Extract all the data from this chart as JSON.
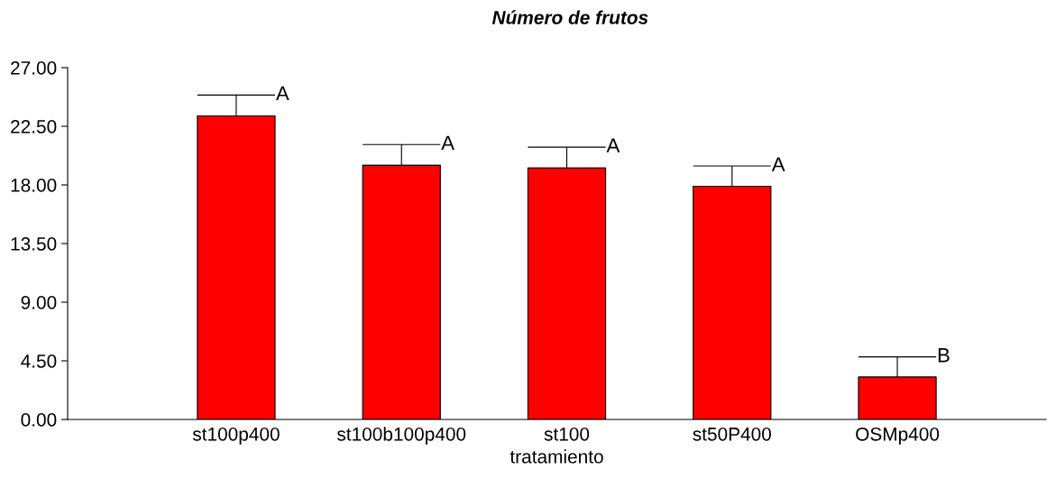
{
  "chart_data": {
    "type": "bar",
    "title": "Número de frutos",
    "xlabel": "tratamiento",
    "categories": [
      "st100p400",
      "st100b100p400",
      "st100",
      "st50P400",
      "OSMp400"
    ],
    "values": [
      23.3,
      19.5,
      19.3,
      17.9,
      3.25
    ],
    "errors": [
      [
        23.3,
        24.9
      ],
      [
        19.5,
        21.1
      ],
      [
        19.3,
        20.9
      ],
      [
        17.9,
        19.45
      ],
      [
        3.25,
        4.8
      ]
    ],
    "color": "#ff0000",
    "ylim": [
      0,
      27
    ],
    "yticks": [
      {
        "value": 0,
        "label": "0.00"
      },
      {
        "value": 4.5,
        "label": "4.50"
      },
      {
        "value": 9,
        "label": "9.00"
      },
      {
        "value": 13.5,
        "label": "13.50"
      },
      {
        "value": 18,
        "label": "18.00"
      },
      {
        "value": 22.5,
        "label": "22.50"
      },
      {
        "value": 27,
        "label": "27.00"
      }
    ],
    "grid": false,
    "annotations": [
      {
        "text": "A",
        "x": "st100p400",
        "y": 24.9
      },
      {
        "text": "A",
        "x": "st100b100p400",
        "y": 21.1
      },
      {
        "text": "A",
        "x": "st100",
        "y": 20.9
      },
      {
        "text": "A",
        "x": "st50P400",
        "y": 19.45
      },
      {
        "text": "B",
        "x": "OSMp400",
        "y": 4.8
      }
    ]
  }
}
